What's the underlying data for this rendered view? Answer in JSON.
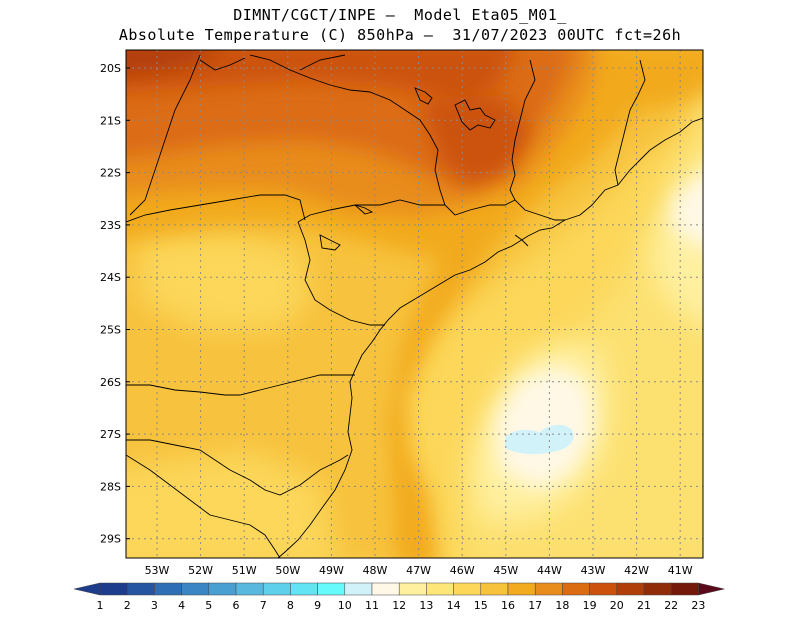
{
  "header": {
    "line1": "DIMNT/CGCT/INPE –  Model Eta05_M01_",
    "line2": "Absolute Temperature (C) 850hPa –  31/07/2023 00UTC fct=26h"
  },
  "map": {
    "lat_labels": [
      "20S",
      "21S",
      "22S",
      "23S",
      "24S",
      "25S",
      "26S",
      "27S",
      "28S",
      "29S"
    ],
    "lon_labels": [
      "53W",
      "52W",
      "51W",
      "50W",
      "49W",
      "48W",
      "47W",
      "46W",
      "45W",
      "44W",
      "43W",
      "42W",
      "41W"
    ],
    "grid_lines": true
  },
  "colorbar": {
    "labels": [
      "1",
      "2",
      "3",
      "4",
      "5",
      "6",
      "7",
      "8",
      "9",
      "10",
      "11",
      "12",
      "13",
      "14",
      "15",
      "16",
      "17",
      "18",
      "19",
      "20",
      "21",
      "22",
      "23"
    ],
    "colors": [
      "#1e3c8c",
      "#2554a0",
      "#2d6eb4",
      "#3a86c4",
      "#4a9fd2",
      "#58b8de",
      "#5fd0ec",
      "#62e4f4",
      "#66fafc",
      "#d2f2fa",
      "#fff8e6",
      "#fff0a0",
      "#ffe678",
      "#fcd75a",
      "#f7c23c",
      "#f2aa1e",
      "#e88c1c",
      "#dc6c12",
      "#cc520c",
      "#b03e08",
      "#902c08",
      "#74180c",
      "#5a0a1a"
    ]
  }
}
